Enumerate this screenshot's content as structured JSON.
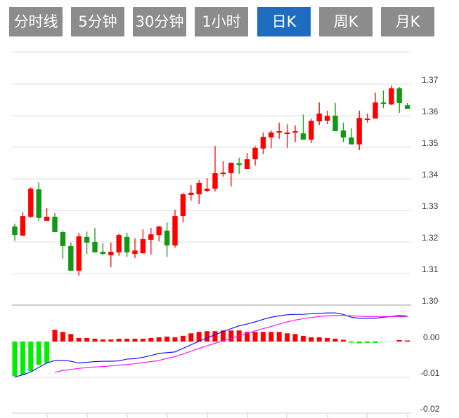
{
  "tabs": [
    {
      "label": "分时线",
      "active": false
    },
    {
      "label": "5分钟",
      "active": false
    },
    {
      "label": "30分钟",
      "active": false
    },
    {
      "label": "1小时",
      "active": false
    },
    {
      "label": "日K",
      "active": true
    },
    {
      "label": "周K",
      "active": false
    },
    {
      "label": "月K",
      "active": false
    }
  ],
  "colors": {
    "up": "#ff0000",
    "down": "#119911",
    "macd_up": "#ff0000",
    "macd_down": "#00ee00",
    "dif": "#0000ff",
    "dea": "#ff00ff",
    "active_tab": "#1d6cbf",
    "tab": "#8c8c8c"
  },
  "chart_data": [
    {
      "type": "candlestick",
      "title": "",
      "ylim": [
        1.3,
        1.37
      ],
      "yticks": [
        "1.37",
        "1.36",
        "1.35",
        "1.34",
        "1.33",
        "1.32",
        "1.31",
        "1.30"
      ],
      "grid": true,
      "ohlc": [
        [
          1.3249,
          1.3258,
          1.3204,
          1.3222
        ],
        [
          1.322,
          1.3296,
          1.322,
          1.3282
        ],
        [
          1.328,
          1.3373,
          1.3276,
          1.3369
        ],
        [
          1.3367,
          1.3389,
          1.3267,
          1.3276
        ],
        [
          1.3267,
          1.3307,
          1.3267,
          1.328
        ],
        [
          1.328,
          1.3291,
          1.3231,
          1.3231
        ],
        [
          1.3231,
          1.3236,
          1.3147,
          1.3187
        ],
        [
          1.3187,
          1.3198,
          1.3109,
          1.3109
        ],
        [
          1.3109,
          1.3229,
          1.3093,
          1.3218
        ],
        [
          1.3216,
          1.3233,
          1.3162,
          1.3198
        ],
        [
          1.32,
          1.3244,
          1.3167,
          1.3167
        ],
        [
          1.3169,
          1.3196,
          1.3158,
          1.3162
        ],
        [
          1.3158,
          1.3198,
          1.312,
          1.3169
        ],
        [
          1.3167,
          1.3227,
          1.3156,
          1.3222
        ],
        [
          1.3216,
          1.3229,
          1.3153,
          1.3167
        ],
        [
          1.3162,
          1.3211,
          1.3149,
          1.3173
        ],
        [
          1.3164,
          1.324,
          1.3164,
          1.3209
        ],
        [
          1.3207,
          1.3244,
          1.316,
          1.3224
        ],
        [
          1.3222,
          1.3251,
          1.3202,
          1.3249
        ],
        [
          1.3236,
          1.3262,
          1.3153,
          1.3189
        ],
        [
          1.3189,
          1.3302,
          1.3182,
          1.3282
        ],
        [
          1.3282,
          1.3356,
          1.3262,
          1.3351
        ],
        [
          1.3349,
          1.338,
          1.3331,
          1.3356
        ],
        [
          1.3351,
          1.3396,
          1.332,
          1.3387
        ],
        [
          1.3362,
          1.3402,
          1.3358,
          1.3369
        ],
        [
          1.3369,
          1.3504,
          1.336,
          1.3418
        ],
        [
          1.3418,
          1.3456,
          1.3407,
          1.342
        ],
        [
          1.3418,
          1.3451,
          1.3376,
          1.3451
        ],
        [
          1.3449,
          1.3467,
          1.3416,
          1.3444
        ],
        [
          1.3431,
          1.3482,
          1.3431,
          1.3462
        ],
        [
          1.3462,
          1.3504,
          1.3442,
          1.3498
        ],
        [
          1.3496,
          1.3547,
          1.3478,
          1.3533
        ],
        [
          1.3531,
          1.3553,
          1.3498,
          1.3547
        ],
        [
          1.3547,
          1.3578,
          1.3527,
          1.3551
        ],
        [
          1.3542,
          1.3573,
          1.3498,
          1.3547
        ],
        [
          1.3547,
          1.3569,
          1.3516,
          1.3551
        ],
        [
          1.3544,
          1.3604,
          1.3524,
          1.3524
        ],
        [
          1.3524,
          1.3591,
          1.3513,
          1.3584
        ],
        [
          1.3582,
          1.3642,
          1.3571,
          1.3607
        ],
        [
          1.3584,
          1.3616,
          1.3573,
          1.36
        ],
        [
          1.36,
          1.364,
          1.3551,
          1.3551
        ],
        [
          1.3553,
          1.3578,
          1.3516,
          1.3531
        ],
        [
          1.3531,
          1.356,
          1.3509,
          1.3509
        ],
        [
          1.3509,
          1.3616,
          1.3491,
          1.3593
        ],
        [
          1.3587,
          1.3607,
          1.3578,
          1.3591
        ],
        [
          1.3591,
          1.3673,
          1.3591,
          1.3642
        ],
        [
          1.3642,
          1.368,
          1.3624,
          1.3638
        ],
        [
          1.3636,
          1.3696,
          1.3633,
          1.3687
        ],
        [
          1.3687,
          1.3691,
          1.3609,
          1.364
        ],
        [
          1.3633,
          1.364,
          1.3622,
          1.3622
        ]
      ]
    },
    {
      "type": "macd",
      "ylim": [
        -0.02,
        0.01
      ],
      "yticks": [
        "0.00",
        "-0.01",
        "-0.02"
      ],
      "histogram": [
        -0.0097,
        -0.0093,
        -0.0083,
        -0.0065,
        -0.006,
        0.0033,
        0.0027,
        0.0021,
        0.001,
        0.001,
        0.0008,
        0.0006,
        0.0006,
        0.0008,
        0.0008,
        0.0008,
        0.0008,
        0.001,
        0.0012,
        0.0014,
        0.0012,
        0.0016,
        0.0023,
        0.0027,
        0.0029,
        0.0029,
        0.0031,
        0.0031,
        0.0031,
        0.0027,
        0.0027,
        0.0027,
        0.0027,
        0.0027,
        0.0023,
        0.0021,
        0.0016,
        0.0012,
        0.0012,
        0.001,
        0.0008,
        0.0005,
        -0.0003,
        -0.0005,
        -0.0004,
        -0.0004,
        0,
        0,
        0.0004,
        0.0003
      ],
      "dif": [
        -0.0099,
        -0.0093,
        -0.0085,
        -0.0072,
        -0.006,
        -0.0053,
        -0.0052,
        -0.0055,
        -0.006,
        -0.0058,
        -0.0056,
        -0.0055,
        -0.0055,
        -0.0054,
        -0.0049,
        -0.0048,
        -0.0044,
        -0.0039,
        -0.0033,
        -0.0031,
        -0.0029,
        -0.0019,
        -0.0009,
        0.0001,
        0.001,
        0.0019,
        0.0028,
        0.0036,
        0.0044,
        0.0049,
        0.0055,
        0.0062,
        0.0068,
        0.0072,
        0.0075,
        0.0076,
        0.0076,
        0.0078,
        0.0079,
        0.008,
        0.008,
        0.0076,
        0.0068,
        0.0065,
        0.0065,
        0.0065,
        0.0068,
        0.007,
        0.0073,
        0.0071
      ],
      "dea": [
        null,
        null,
        null,
        null,
        null,
        -0.0086,
        -0.0081,
        -0.0078,
        -0.0075,
        -0.0073,
        -0.0071,
        -0.007,
        -0.0068,
        -0.0066,
        -0.0064,
        -0.0062,
        -0.0059,
        -0.0056,
        -0.0053,
        -0.0047,
        -0.0042,
        -0.0035,
        -0.0027,
        -0.0019,
        -0.0012,
        -0.0005,
        0.0002,
        0.0009,
        0.0016,
        0.0023,
        0.003,
        0.0036,
        0.0042,
        0.0049,
        0.0055,
        0.006,
        0.0064,
        0.0067,
        0.007,
        0.0072,
        0.0073,
        0.0073,
        0.0072,
        0.0071,
        0.007,
        0.007,
        0.007,
        0.007,
        0.007,
        0.007
      ]
    }
  ]
}
